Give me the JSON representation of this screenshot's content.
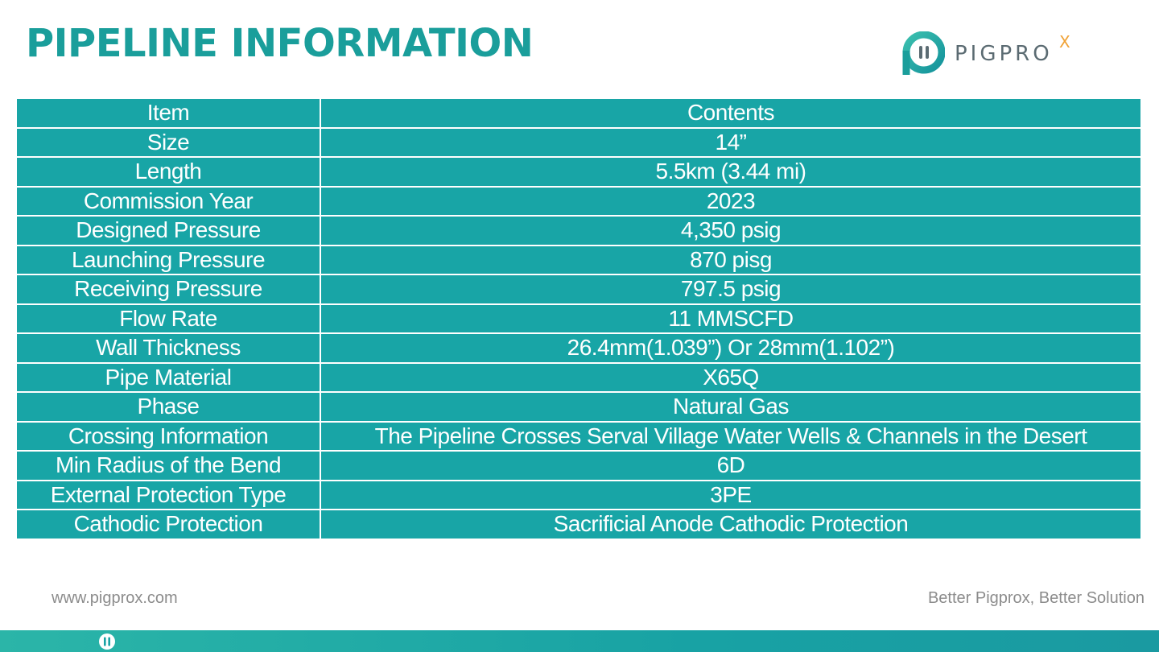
{
  "page": {
    "title": "PIPELINE INFORMATION"
  },
  "logo": {
    "text": "PIGPRO",
    "superscript": "X",
    "icon": "pigprox-logo-icon",
    "colors": {
      "teal": "#1a9e9b",
      "gray": "#5b6b72",
      "orange": "#f0a236"
    }
  },
  "table": {
    "headers": {
      "item": "Item",
      "contents": "Contents"
    },
    "rows": [
      {
        "item": "Size",
        "contents": "14”"
      },
      {
        "item": "Length",
        "contents": "5.5km (3.44 mi)"
      },
      {
        "item": "Commission Year",
        "contents": "2023"
      },
      {
        "item": "Designed Pressure",
        "contents": "4,350 psig"
      },
      {
        "item": "Launching Pressure",
        "contents": "870 pisg"
      },
      {
        "item": "Receiving Pressure",
        "contents": "797.5 psig"
      },
      {
        "item": "Flow Rate",
        "contents": "11 MMSCFD"
      },
      {
        "item": "Wall Thickness",
        "contents": "26.4mm(1.039”) Or 28mm(1.102”)"
      },
      {
        "item": "Pipe Material",
        "contents": "X65Q"
      },
      {
        "item": "Phase",
        "contents": "Natural Gas"
      },
      {
        "item": "Crossing Information",
        "contents": "The Pipeline Crosses Serval Village Water Wells & Channels in the Desert"
      },
      {
        "item": "Min Radius of the Bend",
        "contents": "6D"
      },
      {
        "item": "External Protection Type",
        "contents": "3PE"
      },
      {
        "item": "Cathodic Protection",
        "contents": "Sacrificial Anode Cathodic Protection"
      }
    ],
    "colors": {
      "cell": "#18a5a6",
      "border": "#ffffff",
      "text": "#ffffff"
    }
  },
  "footer": {
    "website": "www.pigprox.com",
    "tagline": "Better Pigprox, Better Solution",
    "bar_icon": "pigprox-mark-icon"
  }
}
